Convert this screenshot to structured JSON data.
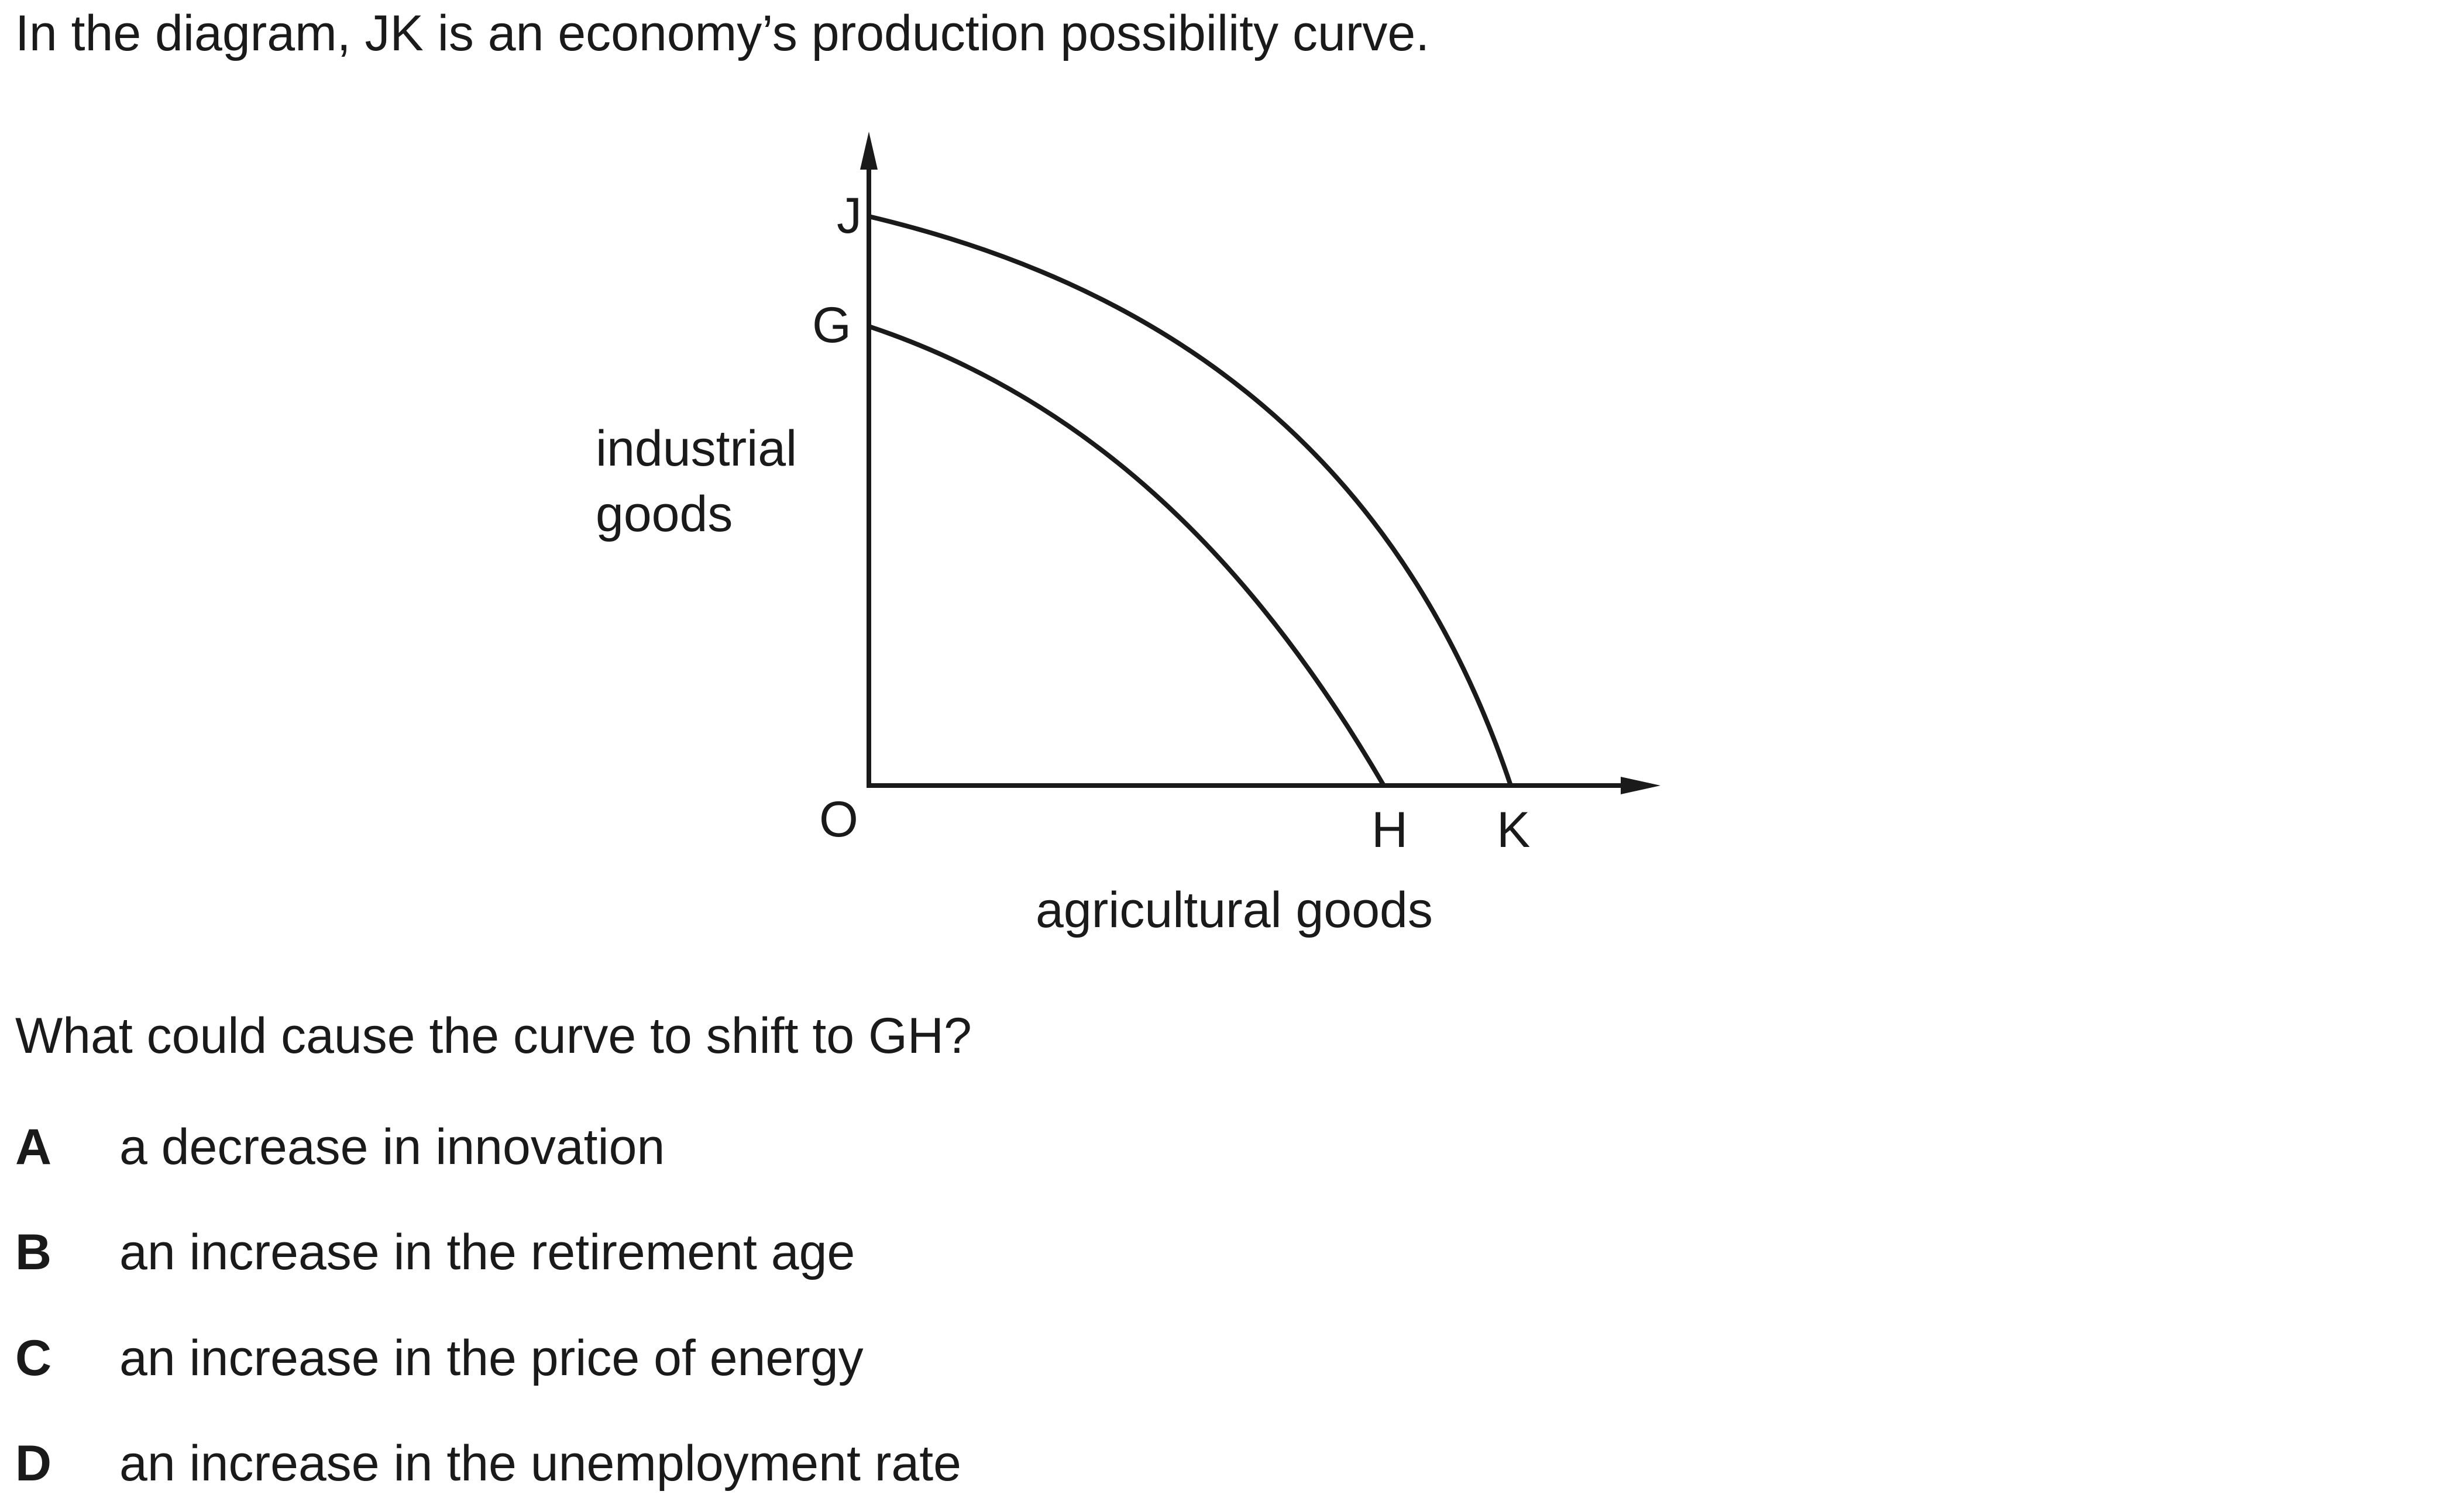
{
  "intro_text": "In the diagram, JK is an economy’s production possibility curve.",
  "diagram": {
    "y_axis_label_line1": "industrial",
    "y_axis_label_line2": "goods",
    "x_axis_label": "agricultural goods",
    "origin_label": "O",
    "point_j": "J",
    "point_g": "G",
    "point_h": "H",
    "point_k": "K"
  },
  "question_text": "What could cause the curve to shift to GH?",
  "options": [
    {
      "letter": "A",
      "text": "a decrease in innovation"
    },
    {
      "letter": "B",
      "text": "an increase in the retirement age"
    },
    {
      "letter": "C",
      "text": "an increase in the price of energy"
    },
    {
      "letter": "D",
      "text": "an increase in the unemployment rate"
    }
  ]
}
